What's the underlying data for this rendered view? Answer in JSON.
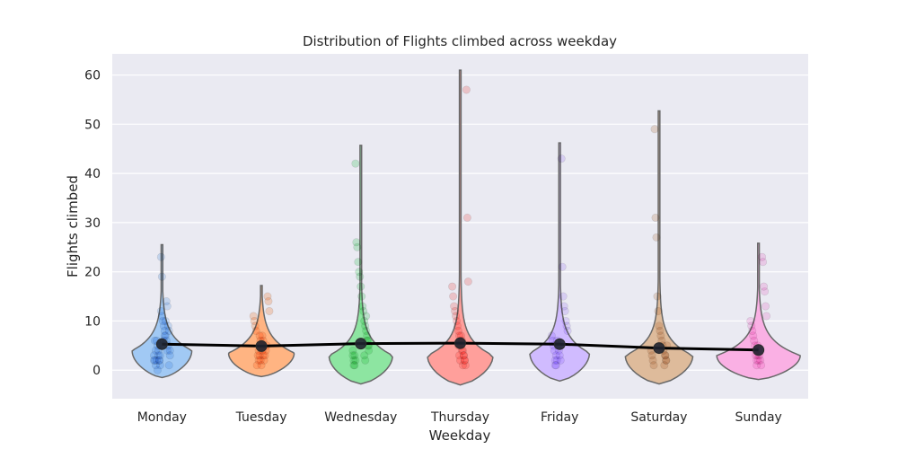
{
  "chart_data": {
    "type": "violin",
    "title": "Distribution of Flights climbed across weekday",
    "xlabel": "Weekday",
    "ylabel": "Flights climbed",
    "categories": [
      "Monday",
      "Tuesday",
      "Wednesday",
      "Thursday",
      "Friday",
      "Saturday",
      "Sunday"
    ],
    "ylim": [
      -5.8,
      64.3
    ],
    "yticks": [
      0,
      10,
      20,
      30,
      40,
      50,
      60
    ],
    "grid": true,
    "colors": [
      "#a1c9f4",
      "#ffb482",
      "#8de5a1",
      "#ff9f9b",
      "#d0bbff",
      "#debb9b",
      "#fab0e4"
    ],
    "mean_line_color": "#000000",
    "means": [
      5.3,
      4.9,
      5.4,
      5.5,
      5.3,
      4.5,
      4.1
    ],
    "violin_ranges": [
      [
        -1.5,
        25.5
      ],
      [
        -1.3,
        17.2
      ],
      [
        -2.8,
        45.7
      ],
      [
        -3.0,
        61.0
      ],
      [
        -2.2,
        46.2
      ],
      [
        -2.8,
        52.7
      ],
      [
        -1.9,
        25.8
      ]
    ],
    "violin_modes": [
      4.0,
      3.5,
      3.0,
      3.0,
      3.5,
      3.0,
      3.0
    ],
    "violin_max_halfwidth": [
      0.3,
      0.33,
      0.32,
      0.33,
      0.3,
      0.34,
      0.42
    ],
    "points": [
      [
        2,
        3,
        1,
        5,
        4,
        6,
        7,
        8,
        9,
        10,
        11,
        12,
        3,
        2,
        4,
        5,
        6,
        1,
        2,
        3,
        4,
        8,
        9,
        13,
        14,
        10,
        7,
        6,
        5,
        19,
        23,
        1,
        2,
        3,
        0,
        2,
        4,
        6
      ],
      [
        3,
        4,
        5,
        6,
        7,
        2,
        3,
        1,
        8,
        9,
        10,
        11,
        12,
        14,
        15,
        5,
        4,
        3,
        2,
        6,
        7,
        1,
        2,
        3,
        4
      ],
      [
        2,
        3,
        1,
        4,
        5,
        6,
        7,
        8,
        9,
        10,
        12,
        13,
        15,
        17,
        19,
        20,
        22,
        25,
        26,
        42,
        1,
        2,
        3,
        4,
        5,
        6,
        11,
        2,
        3
      ],
      [
        2,
        3,
        1,
        4,
        5,
        6,
        7,
        8,
        9,
        10,
        11,
        12,
        13,
        15,
        17,
        18,
        31,
        57,
        1,
        2,
        3,
        4,
        6,
        7,
        2,
        3,
        5
      ],
      [
        2,
        3,
        1,
        4,
        5,
        6,
        7,
        8,
        9,
        10,
        12,
        13,
        15,
        21,
        43,
        2,
        3,
        4,
        5,
        6,
        1,
        2
      ],
      [
        2,
        3,
        1,
        4,
        5,
        6,
        7,
        8,
        9,
        12,
        15,
        27,
        31,
        49,
        1,
        2,
        3,
        4,
        5,
        2,
        3
      ],
      [
        2,
        3,
        1,
        4,
        5,
        6,
        7,
        8,
        9,
        10,
        11,
        13,
        16,
        17,
        22,
        23,
        1,
        2,
        3,
        4,
        5,
        2,
        3
      ]
    ]
  }
}
